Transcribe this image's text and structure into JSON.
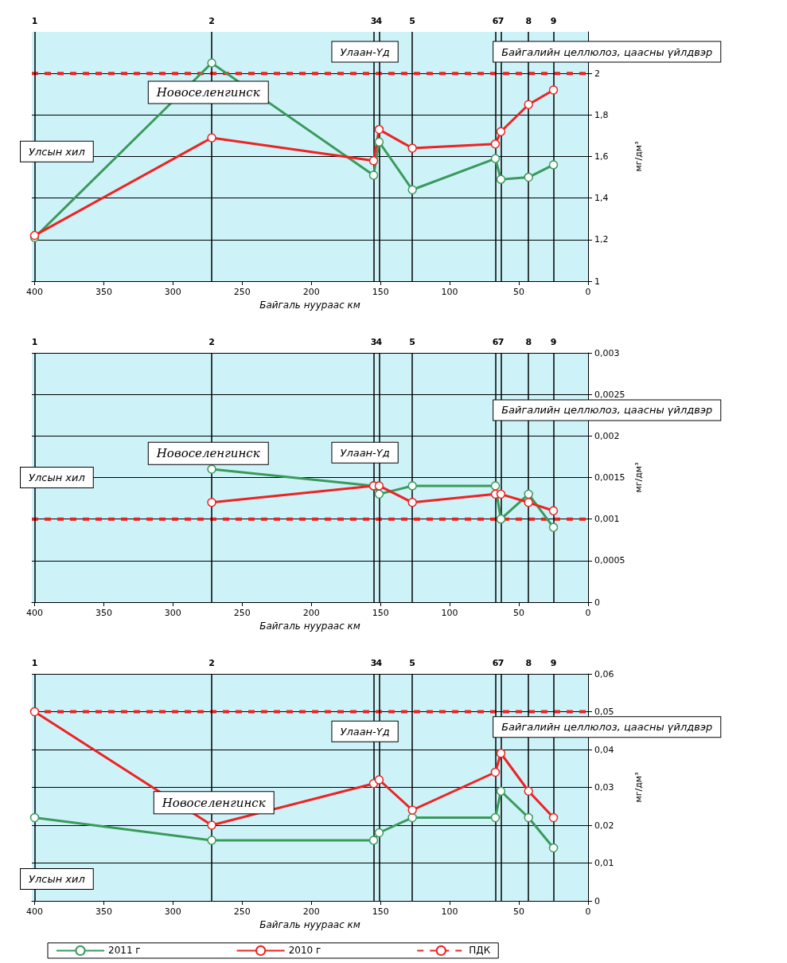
{
  "chart_data": [
    {
      "type": "line",
      "xlabel": "Байгаль нуураас км",
      "ylabel": "мг/дм³",
      "xlim": [
        402,
        0
      ],
      "xticks": [
        400,
        350,
        300,
        250,
        200,
        150,
        100,
        50,
        0
      ],
      "ylim": [
        1,
        2.2
      ],
      "yticks": [
        1,
        {
          "value": 1.2,
          "label": "1,2"
        },
        {
          "value": 1.4,
          "label": "1,4"
        },
        {
          "value": 1.6,
          "label": "1,6"
        },
        {
          "value": 1.8,
          "label": "1,8"
        },
        2
      ],
      "grid": "y",
      "legend": false,
      "marker": "circle",
      "x": [
        400,
        272,
        155,
        151,
        127,
        67,
        63,
        43,
        25
      ],
      "series": [
        {
          "color": "#3a9a5b",
          "values": [
            1.21,
            2.05,
            1.51,
            1.67,
            1.44,
            1.59,
            1.49,
            1.5,
            1.56
          ]
        },
        {
          "color": "#ee2222",
          "values": [
            1.22,
            1.69,
            1.58,
            1.73,
            1.64,
            1.66,
            1.72,
            1.85,
            1.92
          ]
        }
      ],
      "ref_lines": [
        {
          "axis": "y",
          "value": 2,
          "color": "#ee2222",
          "line_style": "dashed"
        },
        {
          "axis": "x",
          "value": 400
        },
        {
          "axis": "x",
          "value": 272
        },
        {
          "axis": "x",
          "value": 155
        },
        {
          "axis": "x",
          "value": 151
        },
        {
          "axis": "x",
          "value": 127
        },
        {
          "axis": "x",
          "value": 67
        },
        {
          "axis": "x",
          "value": 63
        },
        {
          "axis": "x",
          "value": 43
        },
        {
          "axis": "x",
          "value": 25
        }
      ],
      "annotations": [
        "Улсын хил",
        "Новоселенгинск",
        "Улаан-Үд",
        "Байгалийн целлюлоз, цаасны үйлдвэр",
        "1",
        "2",
        "3",
        "4",
        "5",
        "6",
        "7",
        "8",
        "9"
      ]
    },
    {
      "type": "line",
      "xlabel": "Байгаль нуураас км",
      "ylabel": "мг/дм³",
      "xlim": [
        402,
        0
      ],
      "xticks": [
        400,
        350,
        300,
        250,
        200,
        150,
        100,
        50,
        0
      ],
      "ylim": [
        0,
        0.003
      ],
      "yticks": [
        0,
        {
          "value": 0.0005,
          "label": "0,0005"
        },
        {
          "value": 0.001,
          "label": "0,001"
        },
        {
          "value": 0.0015,
          "label": "0,0015"
        },
        {
          "value": 0.002,
          "label": "0,002"
        },
        {
          "value": 0.0025,
          "label": "0,0025"
        },
        {
          "value": 0.003,
          "label": "0,003"
        }
      ],
      "grid": "y",
      "legend": false,
      "marker": "circle",
      "x": [
        272,
        155,
        151,
        127,
        67,
        63,
        43,
        25
      ],
      "series": [
        {
          "color": "#3a9a5b",
          "values": [
            0.0016,
            0.0014,
            0.0013,
            0.0014,
            0.0014,
            0.001,
            0.0013,
            0.0009
          ]
        },
        {
          "color": "#ee2222",
          "values": [
            0.0012,
            0.0014,
            0.0014,
            0.0012,
            0.0013,
            0.0013,
            0.0012,
            0.0011
          ]
        }
      ],
      "ref_lines": [
        {
          "axis": "y",
          "value": 0.001,
          "color": "#ee2222",
          "line_style": "dashed"
        },
        {
          "axis": "x",
          "value": 400
        },
        {
          "axis": "x",
          "value": 272
        },
        {
          "axis": "x",
          "value": 155
        },
        {
          "axis": "x",
          "value": 151
        },
        {
          "axis": "x",
          "value": 127
        },
        {
          "axis": "x",
          "value": 67
        },
        {
          "axis": "x",
          "value": 63
        },
        {
          "axis": "x",
          "value": 43
        },
        {
          "axis": "x",
          "value": 25
        }
      ],
      "annotations": [
        "Улсын хил",
        "Новоселенгинск",
        "Улаан-Үд",
        "Байгалийн целлюлоз, цаасны үйлдвэр",
        "1",
        "2",
        "3",
        "4",
        "5",
        "6",
        "7",
        "8",
        "9"
      ]
    },
    {
      "type": "line",
      "xlabel": "Байгаль нуураас км",
      "ylabel": "мг/дм³",
      "xlim": [
        402,
        0
      ],
      "xticks": [
        400,
        350,
        300,
        250,
        200,
        150,
        100,
        50,
        0
      ],
      "ylim": [
        0,
        0.06
      ],
      "yticks": [
        0,
        {
          "value": 0.01,
          "label": "0,01"
        },
        {
          "value": 0.02,
          "label": "0,02"
        },
        {
          "value": 0.03,
          "label": "0,03"
        },
        {
          "value": 0.04,
          "label": "0,04"
        },
        {
          "value": 0.05,
          "label": "0,05"
        },
        {
          "value": 0.06,
          "label": "0,06"
        }
      ],
      "grid": "y",
      "legend": "bottom",
      "marker": "circle",
      "x": [
        400,
        272,
        155,
        151,
        127,
        67,
        63,
        43,
        25
      ],
      "series": [
        {
          "name": "2011 г",
          "color": "#3a9a5b",
          "values": [
            0.022,
            0.016,
            0.016,
            0.018,
            0.022,
            0.022,
            0.029,
            0.022,
            0.014
          ]
        },
        {
          "name": "2010 г",
          "color": "#ee2222",
          "values": [
            0.05,
            0.02,
            0.031,
            0.032,
            0.024,
            0.034,
            0.039,
            0.029,
            0.022
          ]
        }
      ],
      "ref_lines": [
        {
          "axis": "y",
          "value": 0.05,
          "label": "ПДК",
          "color": "#ee2222",
          "line_style": "dashed"
        },
        {
          "axis": "x",
          "value": 400
        },
        {
          "axis": "x",
          "value": 272
        },
        {
          "axis": "x",
          "value": 155
        },
        {
          "axis": "x",
          "value": 151
        },
        {
          "axis": "x",
          "value": 127
        },
        {
          "axis": "x",
          "value": 67
        },
        {
          "axis": "x",
          "value": 63
        },
        {
          "axis": "x",
          "value": 43
        },
        {
          "axis": "x",
          "value": 25
        }
      ],
      "annotations": [
        "Улсын хил",
        "Новоселенгинск",
        "Улаан-Үд",
        "Байгалийн целлюлоз, цаасны үйлдвэр",
        "1",
        "2",
        "3",
        "4",
        "5",
        "6",
        "7",
        "8",
        "9"
      ]
    }
  ]
}
